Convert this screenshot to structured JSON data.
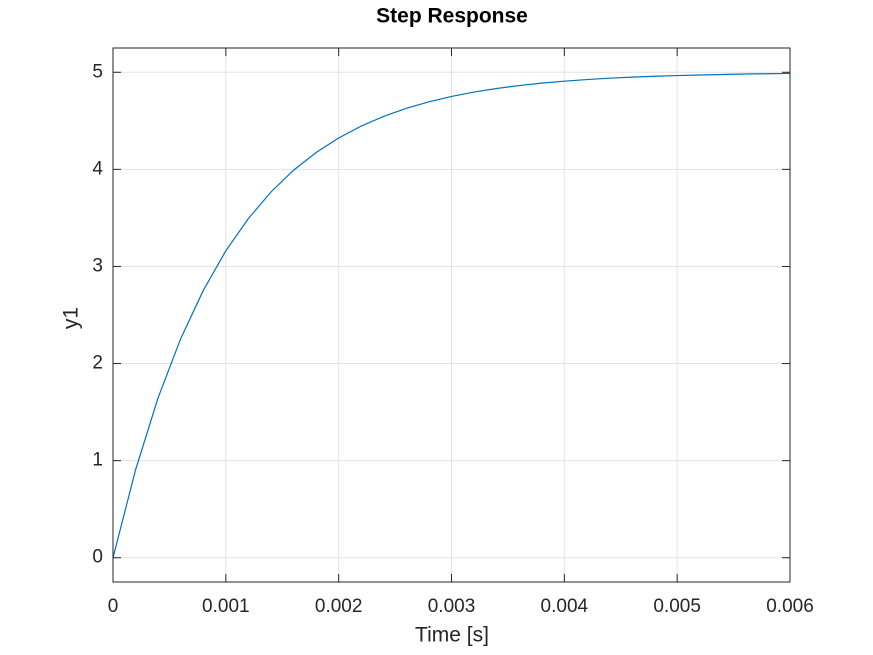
{
  "chart_data": {
    "type": "line",
    "title": "Step Response",
    "xlabel": "Time [s]",
    "ylabel": "y1",
    "x": [
      0,
      0.0002,
      0.0004,
      0.0006,
      0.0008,
      0.001,
      0.0012,
      0.0014,
      0.0016,
      0.0018,
      0.002,
      0.0022,
      0.0024,
      0.0026,
      0.0028,
      0.003,
      0.0032,
      0.0034,
      0.0036,
      0.0038,
      0.004,
      0.0042,
      0.0044,
      0.0046,
      0.0048,
      0.005,
      0.0052,
      0.0054,
      0.0056,
      0.0058,
      0.006
    ],
    "values": [
      0,
      0.906,
      1.648,
      2.256,
      2.753,
      3.161,
      3.494,
      3.767,
      3.991,
      4.174,
      4.323,
      4.446,
      4.546,
      4.629,
      4.696,
      4.751,
      4.796,
      4.833,
      4.863,
      4.888,
      4.908,
      4.925,
      4.939,
      4.95,
      4.959,
      4.966,
      4.972,
      4.977,
      4.982,
      4.985,
      4.988
    ],
    "color": "#0072bd",
    "xlim": [
      0,
      0.006
    ],
    "xticks": [
      0,
      0.001,
      0.002,
      0.003,
      0.004,
      0.005,
      0.006
    ],
    "ylim": [
      -0.25,
      5.25
    ],
    "yticks": [
      0,
      1,
      2,
      3,
      4,
      5
    ],
    "grid": true
  }
}
